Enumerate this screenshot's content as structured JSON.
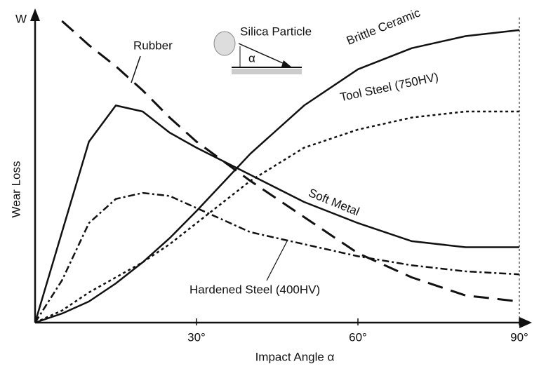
{
  "chart_data": {
    "type": "line",
    "y_axis_symbol": "W",
    "xlabel": "Impact Angle α",
    "ylabel": "Wear Loss",
    "annotations": [
      "Silica Particle",
      "α"
    ],
    "x": [
      0,
      5,
      10,
      15,
      20,
      25,
      30,
      40,
      50,
      60,
      70,
      80,
      90
    ],
    "xlim": [
      0,
      90
    ],
    "xticks": [
      {
        "value": 30,
        "label": "30°"
      },
      {
        "value": 60,
        "label": "60°"
      },
      {
        "value": 90,
        "label": "90°"
      }
    ],
    "ylim": [
      0,
      100
    ],
    "series": [
      {
        "name": "Brittle Ceramic",
        "color": "#111111",
        "dash": "solid",
        "values": [
          0,
          3,
          7,
          13,
          20,
          28,
          37,
          56,
          72,
          84,
          91,
          95,
          97
        ]
      },
      {
        "name": "Soft Metal",
        "color": "#111111",
        "dash": "solid",
        "values": [
          0,
          30,
          60,
          72,
          70,
          63,
          58,
          49,
          40,
          33,
          27,
          25,
          25
        ]
      },
      {
        "name": "Tool Steel (750HV)",
        "color": "#111111",
        "dash": "dotted",
        "values": [
          0,
          4,
          10,
          15,
          20,
          26,
          33,
          47,
          58,
          64,
          68,
          70,
          70
        ]
      },
      {
        "name": "Hardened Steel (400HV)",
        "color": "#111111",
        "dash": "dash-dot",
        "values": [
          0,
          14,
          33,
          41,
          43,
          42,
          38,
          30,
          26,
          22,
          19,
          17,
          16
        ]
      },
      {
        "name": "Rubber",
        "color": "#111111",
        "dash": "dashed",
        "values": [
          null,
          100,
          92,
          85,
          77,
          68,
          60,
          47,
          35,
          23,
          15,
          9,
          7
        ]
      }
    ]
  }
}
